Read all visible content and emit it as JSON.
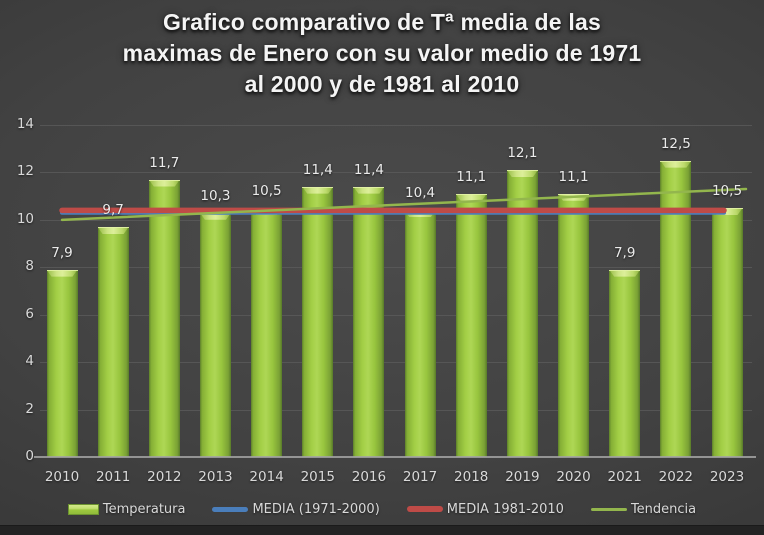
{
  "title": {
    "lines": [
      "Grafico comparativo de Tª media de las",
      "maximas de Enero con su valor medio de 1971",
      "al 2000 y de 1981 al 2010"
    ]
  },
  "chart_data": {
    "type": "bar",
    "categories": [
      "2010",
      "2011",
      "2012",
      "2013",
      "2014",
      "2015",
      "2016",
      "2017",
      "2018",
      "2019",
      "2020",
      "2021",
      "2022",
      "2023"
    ],
    "series": [
      {
        "name": "Temperatura",
        "type": "bar",
        "color": "#9cc83e",
        "values": [
          7.9,
          9.7,
          11.7,
          10.3,
          10.5,
          11.4,
          11.4,
          10.4,
          11.1,
          12.1,
          11.1,
          7.9,
          12.5,
          10.5
        ],
        "labels": [
          "7,9",
          "9,7",
          "11,7",
          "10,3",
          "10,5",
          "11,4",
          "11,4",
          "10,4",
          "11,1",
          "12,1",
          "11,1",
          "7,9",
          "12,5",
          "10,5"
        ]
      },
      {
        "name": "MEDIA (1971-2000)",
        "type": "line",
        "color": "#4a7ebb",
        "value": 10.3
      },
      {
        "name": "MEDIA 1981-2010",
        "type": "line",
        "color": "#bf4b47",
        "value": 10.4
      },
      {
        "name": "Tendencia",
        "type": "trend",
        "color": "#93b64d",
        "start": 10.0,
        "end": 11.3
      }
    ],
    "title": "Grafico comparativo de Tª media de las maximas de Enero con su valor medio de 1971 al 2000 y de 1981 al 2010",
    "xlabel": "",
    "ylabel": "",
    "ylim": [
      0,
      14
    ],
    "yticks": [
      0,
      2,
      4,
      6,
      8,
      10,
      12,
      14
    ],
    "grid": true,
    "legend_position": "bottom",
    "decimal_separator": ","
  },
  "colors": {
    "background_center": "#4b4b4b",
    "background_edge": "#2a2a2a",
    "bar_fill": "#9cc83e",
    "bar_highlight": "#ddef9a",
    "line_blue": "#4a7ebb",
    "line_red": "#bf4b47",
    "line_trend": "#93b64d",
    "gridline": "#5c5c5c",
    "axis_text": "#d9d9d9",
    "title_text": "#f4f4f4"
  }
}
